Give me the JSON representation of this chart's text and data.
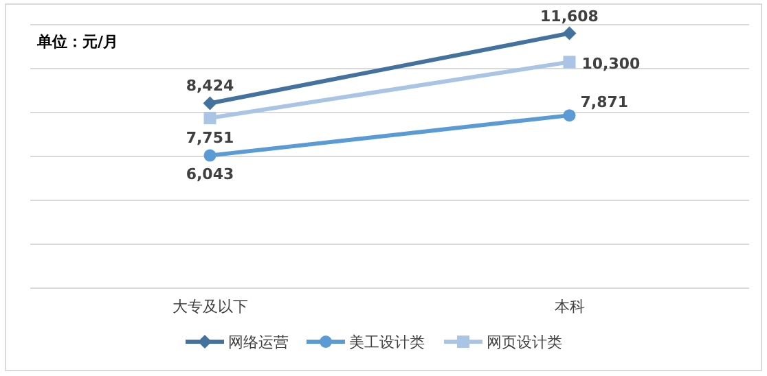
{
  "chart_data": {
    "type": "line",
    "annotations": [
      "单位：元/月"
    ],
    "categories": [
      "大专及以下",
      "本科"
    ],
    "series": [
      {
        "name": "网络运营",
        "color": "#44729f",
        "marker": "diamond",
        "values": [
          8424,
          11608
        ],
        "value_labels": [
          "8,424",
          "11,608"
        ]
      },
      {
        "name": "美工设计类",
        "color": "#5b9bd5",
        "marker": "circle",
        "values": [
          6043,
          7871
        ],
        "value_labels": [
          "6,043",
          "7,871"
        ]
      },
      {
        "name": "网页设计类",
        "color": "#a9c4e4",
        "marker": "square",
        "values": [
          7751,
          10300
        ],
        "value_labels": [
          "7,751",
          "10,300"
        ]
      }
    ],
    "ylim": [
      0,
      12000
    ],
    "yticks": [
      {
        "value": 0,
        "label": null
      },
      {
        "value": 2000,
        "label": null
      },
      {
        "value": 4000,
        "label": null
      },
      {
        "value": 6000,
        "label": null
      },
      {
        "value": 8000,
        "label": null
      },
      {
        "value": 10000,
        "label": null
      },
      {
        "value": 12000,
        "label": null
      }
    ],
    "tick_labels": "x",
    "grid": "y",
    "legend": "bottom"
  }
}
